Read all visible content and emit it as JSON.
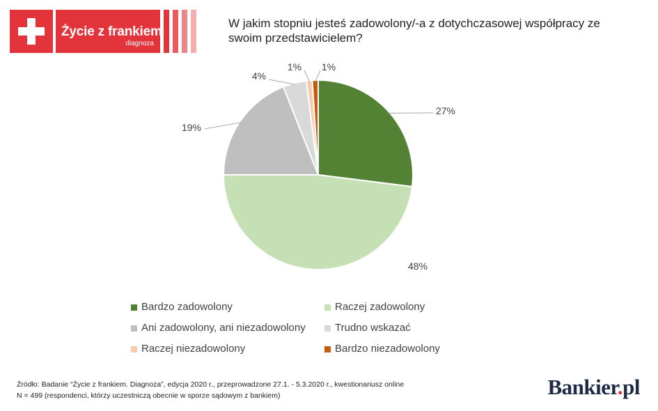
{
  "logo": {
    "title": "Życie z frankiem",
    "subtitle": "diagnoza",
    "colors": {
      "primary": "#e3343b"
    }
  },
  "chart_data": {
    "type": "pie",
    "title": "W jakim stopniu jesteś zadowolony/-a z dotychczasowej współpracy ze swoim przedstawicielem?",
    "slices": [
      {
        "label": "Bardzo zadowolony",
        "value": 27,
        "display": "27%",
        "color": "#548235"
      },
      {
        "label": "Raczej zadowolony",
        "value": 48,
        "display": "48%",
        "color": "#c5e0b4"
      },
      {
        "label": "Ani zadowolony, ani niezadowolony",
        "value": 19,
        "display": "19%",
        "color": "#bfbfbf"
      },
      {
        "label": "Trudno wskazać",
        "value": 4,
        "display": "4%",
        "color": "#d9d9d9"
      },
      {
        "label": "Raczej niezadowolony",
        "value": 1,
        "display": "1%",
        "color": "#f8cbad"
      },
      {
        "label": "Bardzo niezadowolony",
        "value": 1,
        "display": "1%",
        "color": "#c55a11"
      }
    ],
    "legend_position": "bottom"
  },
  "source": {
    "line1": "Źródło: Badanie “Życie z frankiem. Diagnoza”, edycja 2020 r., przeprowadzone 27.1. - 5.3.2020 r., kwestionariusz online",
    "line2": "N = 499 (respondenci, którzy uczestniczą obecnie w sporze sądowym z bankiem)"
  },
  "brand": {
    "name": "Bankier",
    "dot": ".",
    "tld": "pl"
  }
}
